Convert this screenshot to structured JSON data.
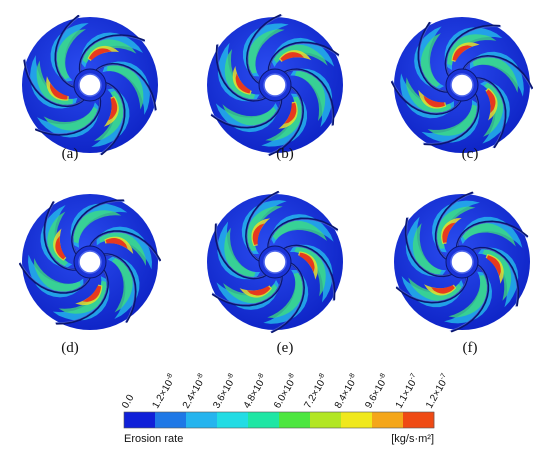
{
  "panels": [
    {
      "label": "(a)",
      "rotation": 0
    },
    {
      "label": "(b)",
      "rotation": 14
    },
    {
      "label": "(c)",
      "rotation": -18
    },
    {
      "label": "(d)",
      "rotation": 38
    },
    {
      "label": "(e)",
      "rotation": 72
    },
    {
      "label": "(f)",
      "rotation": -42
    }
  ],
  "legend": {
    "title": "Erosion rate",
    "unit": "[kg/s·m²]",
    "ticks": [
      {
        "m": "0.0",
        "e": ""
      },
      {
        "m": "1.2×10",
        "e": "-8"
      },
      {
        "m": "2.4×10",
        "e": "-8"
      },
      {
        "m": "3.6×10",
        "e": "-8"
      },
      {
        "m": "4.8×10",
        "e": "-8"
      },
      {
        "m": "6.0×10",
        "e": "-8"
      },
      {
        "m": "7.2×10",
        "e": "-8"
      },
      {
        "m": "8.4×10",
        "e": "-8"
      },
      {
        "m": "9.6×10",
        "e": "-8"
      },
      {
        "m": "1.1×10",
        "e": "-7"
      },
      {
        "m": "1.2×10",
        "e": "-7"
      }
    ],
    "colors": [
      "#1020d8",
      "#1f78e6",
      "#26b4ee",
      "#22dce4",
      "#1fe6a4",
      "#4de640",
      "#b2e624",
      "#f0e81c",
      "#f4a61a",
      "#ef4a14"
    ]
  }
}
